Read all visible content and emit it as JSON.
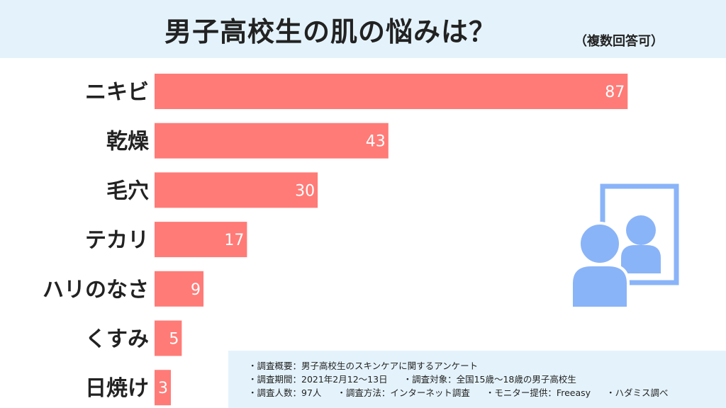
{
  "header": {
    "title": "男子高校生の肌の悩みは？",
    "subtitle": "（複数回答可）"
  },
  "chart_data": {
    "type": "bar",
    "orientation": "horizontal",
    "categories": [
      "ニキビ",
      "乾燥",
      "毛穴",
      "テカリ",
      "ハリのなさ",
      "くすみ",
      "日焼け"
    ],
    "values": [
      87,
      43,
      30,
      17,
      9,
      5,
      3
    ],
    "bar_color": "#ff7b77",
    "value_label_color": "#ffffff",
    "grid": false
  },
  "notes": {
    "survey_overview": "・調査概要：男子高校生のスキンケアに関するアンケート",
    "survey_period": "・調査期間：2021年2月12〜13日",
    "survey_target": "・調査対象：全国15歳〜18歳の男子高校生",
    "respondents": "・調査人数：97人",
    "method": "・調査方法：インターネット調査",
    "monitor": "・モニター提供：Freeasy",
    "research_by": "・ハダミス調べ"
  },
  "illustration": {
    "icon": "mirror-person-icon",
    "color": "#8ab4f8"
  },
  "colors": {
    "header_bg": "#e4f3fb",
    "bar": "#ff7b77",
    "accent": "#8ab4f8"
  }
}
